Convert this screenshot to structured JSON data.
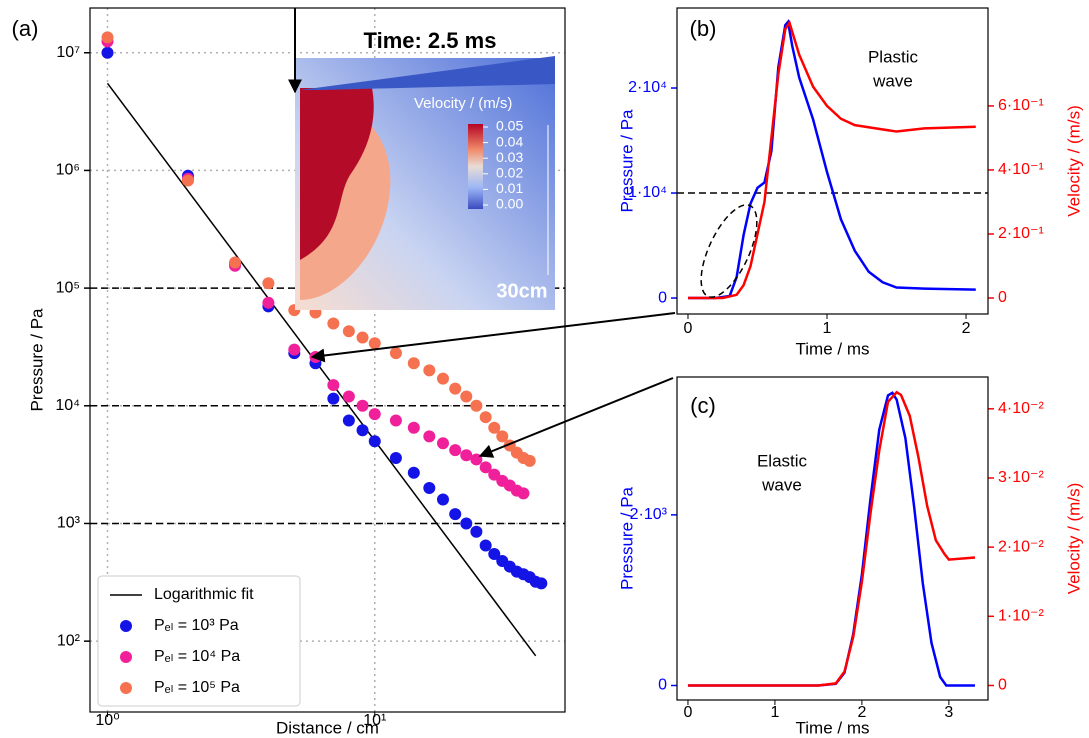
{
  "chart_data": [
    {
      "type": "scatter",
      "label": "(a)",
      "xlabel": "Distance / cm",
      "ylabel": "Pressure / Pa",
      "xscale": "log",
      "yscale": "log",
      "xlim": [
        0.86,
        51.5
      ],
      "ylim": [
        25,
        24000000
      ],
      "xticks": [
        {
          "value": 1,
          "label": "10⁰"
        },
        {
          "value": 10,
          "label": "10¹"
        }
      ],
      "yticks": [
        {
          "value": 100,
          "label": "10²"
        },
        {
          "value": 1000,
          "label": "10³"
        },
        {
          "value": 10000,
          "label": "10⁴"
        },
        {
          "value": 100000,
          "label": "10⁵"
        },
        {
          "value": 1000000,
          "label": "10⁶"
        },
        {
          "value": 10000000,
          "label": "10⁷"
        }
      ],
      "grid": true,
      "hlines": [
        100000,
        10000,
        1000
      ],
      "legend": "lower left",
      "series": [
        {
          "name": "Logarithmic fit",
          "mode": "line",
          "color": "#000000",
          "x": [
            1,
            40
          ],
          "values": [
            5500000,
            75
          ]
        },
        {
          "name": "Pₑₗ = 10³ Pa",
          "mode": "markers",
          "color": "#1414e6",
          "x": [
            1,
            2,
            3,
            4,
            5,
            6,
            7,
            8,
            9,
            10,
            12,
            14,
            16,
            18,
            20,
            22,
            24,
            26,
            28,
            30,
            32,
            34,
            36,
            38,
            40,
            42
          ],
          "values": [
            10000000,
            900000,
            160000,
            70000,
            28000,
            23000,
            11500,
            7500,
            6200,
            5000,
            3600,
            2700,
            2000,
            1600,
            1200,
            1000,
            850,
            650,
            550,
            480,
            430,
            390,
            370,
            350,
            320,
            310
          ]
        },
        {
          "name": "Pₑₗ = 10⁴ Pa",
          "mode": "markers",
          "color": "#f0209a",
          "x": [
            1,
            2,
            3,
            4,
            5,
            6,
            7,
            8,
            9,
            10,
            12,
            14,
            16,
            18,
            20,
            22,
            24,
            26,
            28,
            30,
            32,
            34,
            36
          ],
          "values": [
            12500000,
            850000,
            155000,
            75000,
            30000,
            26000,
            15000,
            12000,
            10000,
            8500,
            7500,
            6500,
            5500,
            4800,
            4200,
            3800,
            3500,
            3000,
            2600,
            2300,
            2100,
            1900,
            1800
          ]
        },
        {
          "name": "Pₑₗ = 10⁵ Pa",
          "mode": "markers",
          "color": "#f5714f",
          "x": [
            1,
            2,
            3,
            4,
            5,
            6,
            7,
            8,
            9,
            10,
            12,
            14,
            16,
            18,
            20,
            22,
            24,
            26,
            28,
            30,
            32,
            34,
            36,
            38
          ],
          "values": [
            13500000,
            820000,
            165000,
            110000,
            65000,
            62000,
            50000,
            43000,
            38000,
            34000,
            28000,
            23000,
            20000,
            17000,
            14000,
            12000,
            10000,
            8000,
            6500,
            5500,
            4600,
            4000,
            3600,
            3400
          ]
        }
      ],
      "inset": {
        "title": "Time: 2.5 ms",
        "colorbar_label": "Velocity / (m/s)",
        "clim": [
          0,
          0.05
        ],
        "colorbar_ticks": [
          0.05,
          0.04,
          0.03,
          0.02,
          0.01,
          {
            "value": 0,
            "label": "0.00"
          }
        ],
        "scale_label": "30cm"
      }
    },
    {
      "type": "line",
      "label": "(b)",
      "xlabel": "Time / ms",
      "ylabel": "Pressure / Pa",
      "y2label": "Velocity / (m/s)",
      "xlim": [
        -0.079,
        2.158
      ],
      "ylim": [
        -1520,
        27620
      ],
      "y2lim": [
        -0.05,
        0.906
      ],
      "xticks": [
        0,
        1,
        2
      ],
      "yticks": [
        0,
        {
          "value": 10000,
          "label": "1·10⁴"
        },
        {
          "value": 20000,
          "label": "2·10⁴"
        }
      ],
      "y2ticks": [
        0,
        {
          "value": 0.2,
          "label": "2·10⁻¹"
        },
        {
          "value": 0.4,
          "label": "4·10⁻¹"
        },
        {
          "value": 0.6,
          "label": "6·10⁻¹"
        }
      ],
      "hlines": [
        10000
      ],
      "annotation": [
        "Plastic",
        "wave"
      ],
      "series": [
        {
          "mode": "line",
          "color": "#0000ff",
          "x": [
            0,
            0.2,
            0.3,
            0.35,
            0.4,
            0.45,
            0.5,
            0.55,
            0.6,
            0.65,
            0.7,
            0.72,
            0.75,
            0.8,
            0.9,
            1.0,
            1.1,
            1.2,
            1.3,
            1.4,
            1.5,
            1.7,
            2.07
          ],
          "values": [
            0,
            0,
            200,
            2000,
            6000,
            9000,
            10500,
            11000,
            14000,
            22000,
            26000,
            26300,
            24000,
            21000,
            17000,
            12000,
            7500,
            4500,
            2500,
            1500,
            1000,
            900,
            800
          ]
        },
        {
          "mode": "line",
          "color": "#ff0000",
          "axis": "y2",
          "x": [
            0,
            0.25,
            0.35,
            0.4,
            0.45,
            0.5,
            0.55,
            0.6,
            0.65,
            0.7,
            0.73,
            0.8,
            0.9,
            1.0,
            1.1,
            1.2,
            1.5,
            1.7,
            2.07
          ],
          "values": [
            0,
            0,
            0.01,
            0.04,
            0.1,
            0.2,
            0.3,
            0.5,
            0.7,
            0.84,
            0.86,
            0.76,
            0.66,
            0.6,
            0.56,
            0.54,
            0.52,
            0.53,
            0.535
          ]
        }
      ]
    },
    {
      "type": "line",
      "label": "(c)",
      "xlabel": "Time / ms",
      "ylabel": "Pressure / Pa",
      "y2label": "Velocity / (m/s)",
      "xlim": [
        -0.126,
        3.45
      ],
      "ylim": [
        -170,
        3616
      ],
      "y2lim": [
        -0.0021,
        0.0446
      ],
      "xticks": [
        0,
        1,
        2,
        3
      ],
      "yticks": [
        0,
        {
          "value": 2000,
          "label": "2·10³"
        }
      ],
      "y2ticks": [
        0,
        {
          "value": 0.01,
          "label": "1·10⁻²"
        },
        {
          "value": 0.02,
          "label": "2·10⁻²"
        },
        {
          "value": 0.03,
          "label": "3·10⁻²"
        },
        {
          "value": 0.04,
          "label": "4·10⁻²"
        }
      ],
      "annotation": [
        "Elastic",
        "wave"
      ],
      "series": [
        {
          "mode": "line",
          "color": "#0000ff",
          "x": [
            0,
            1.5,
            1.7,
            1.8,
            1.9,
            2.0,
            2.1,
            2.2,
            2.3,
            2.35,
            2.4,
            2.5,
            2.6,
            2.7,
            2.8,
            2.9,
            2.97,
            3.3
          ],
          "values": [
            0,
            0,
            20,
            150,
            600,
            1300,
            2200,
            3000,
            3400,
            3430,
            3350,
            2900,
            2100,
            1200,
            500,
            100,
            0,
            0
          ]
        },
        {
          "mode": "line",
          "color": "#ff0000",
          "axis": "y2",
          "x": [
            0,
            1.5,
            1.7,
            1.8,
            1.9,
            2.0,
            2.1,
            2.2,
            2.3,
            2.4,
            2.45,
            2.55,
            2.65,
            2.75,
            2.85,
            2.95,
            3.0,
            3.3
          ],
          "values": [
            0,
            0,
            0.0003,
            0.002,
            0.007,
            0.015,
            0.025,
            0.034,
            0.041,
            0.0424,
            0.042,
            0.039,
            0.033,
            0.026,
            0.021,
            0.019,
            0.0182,
            0.0185
          ]
        }
      ]
    }
  ]
}
